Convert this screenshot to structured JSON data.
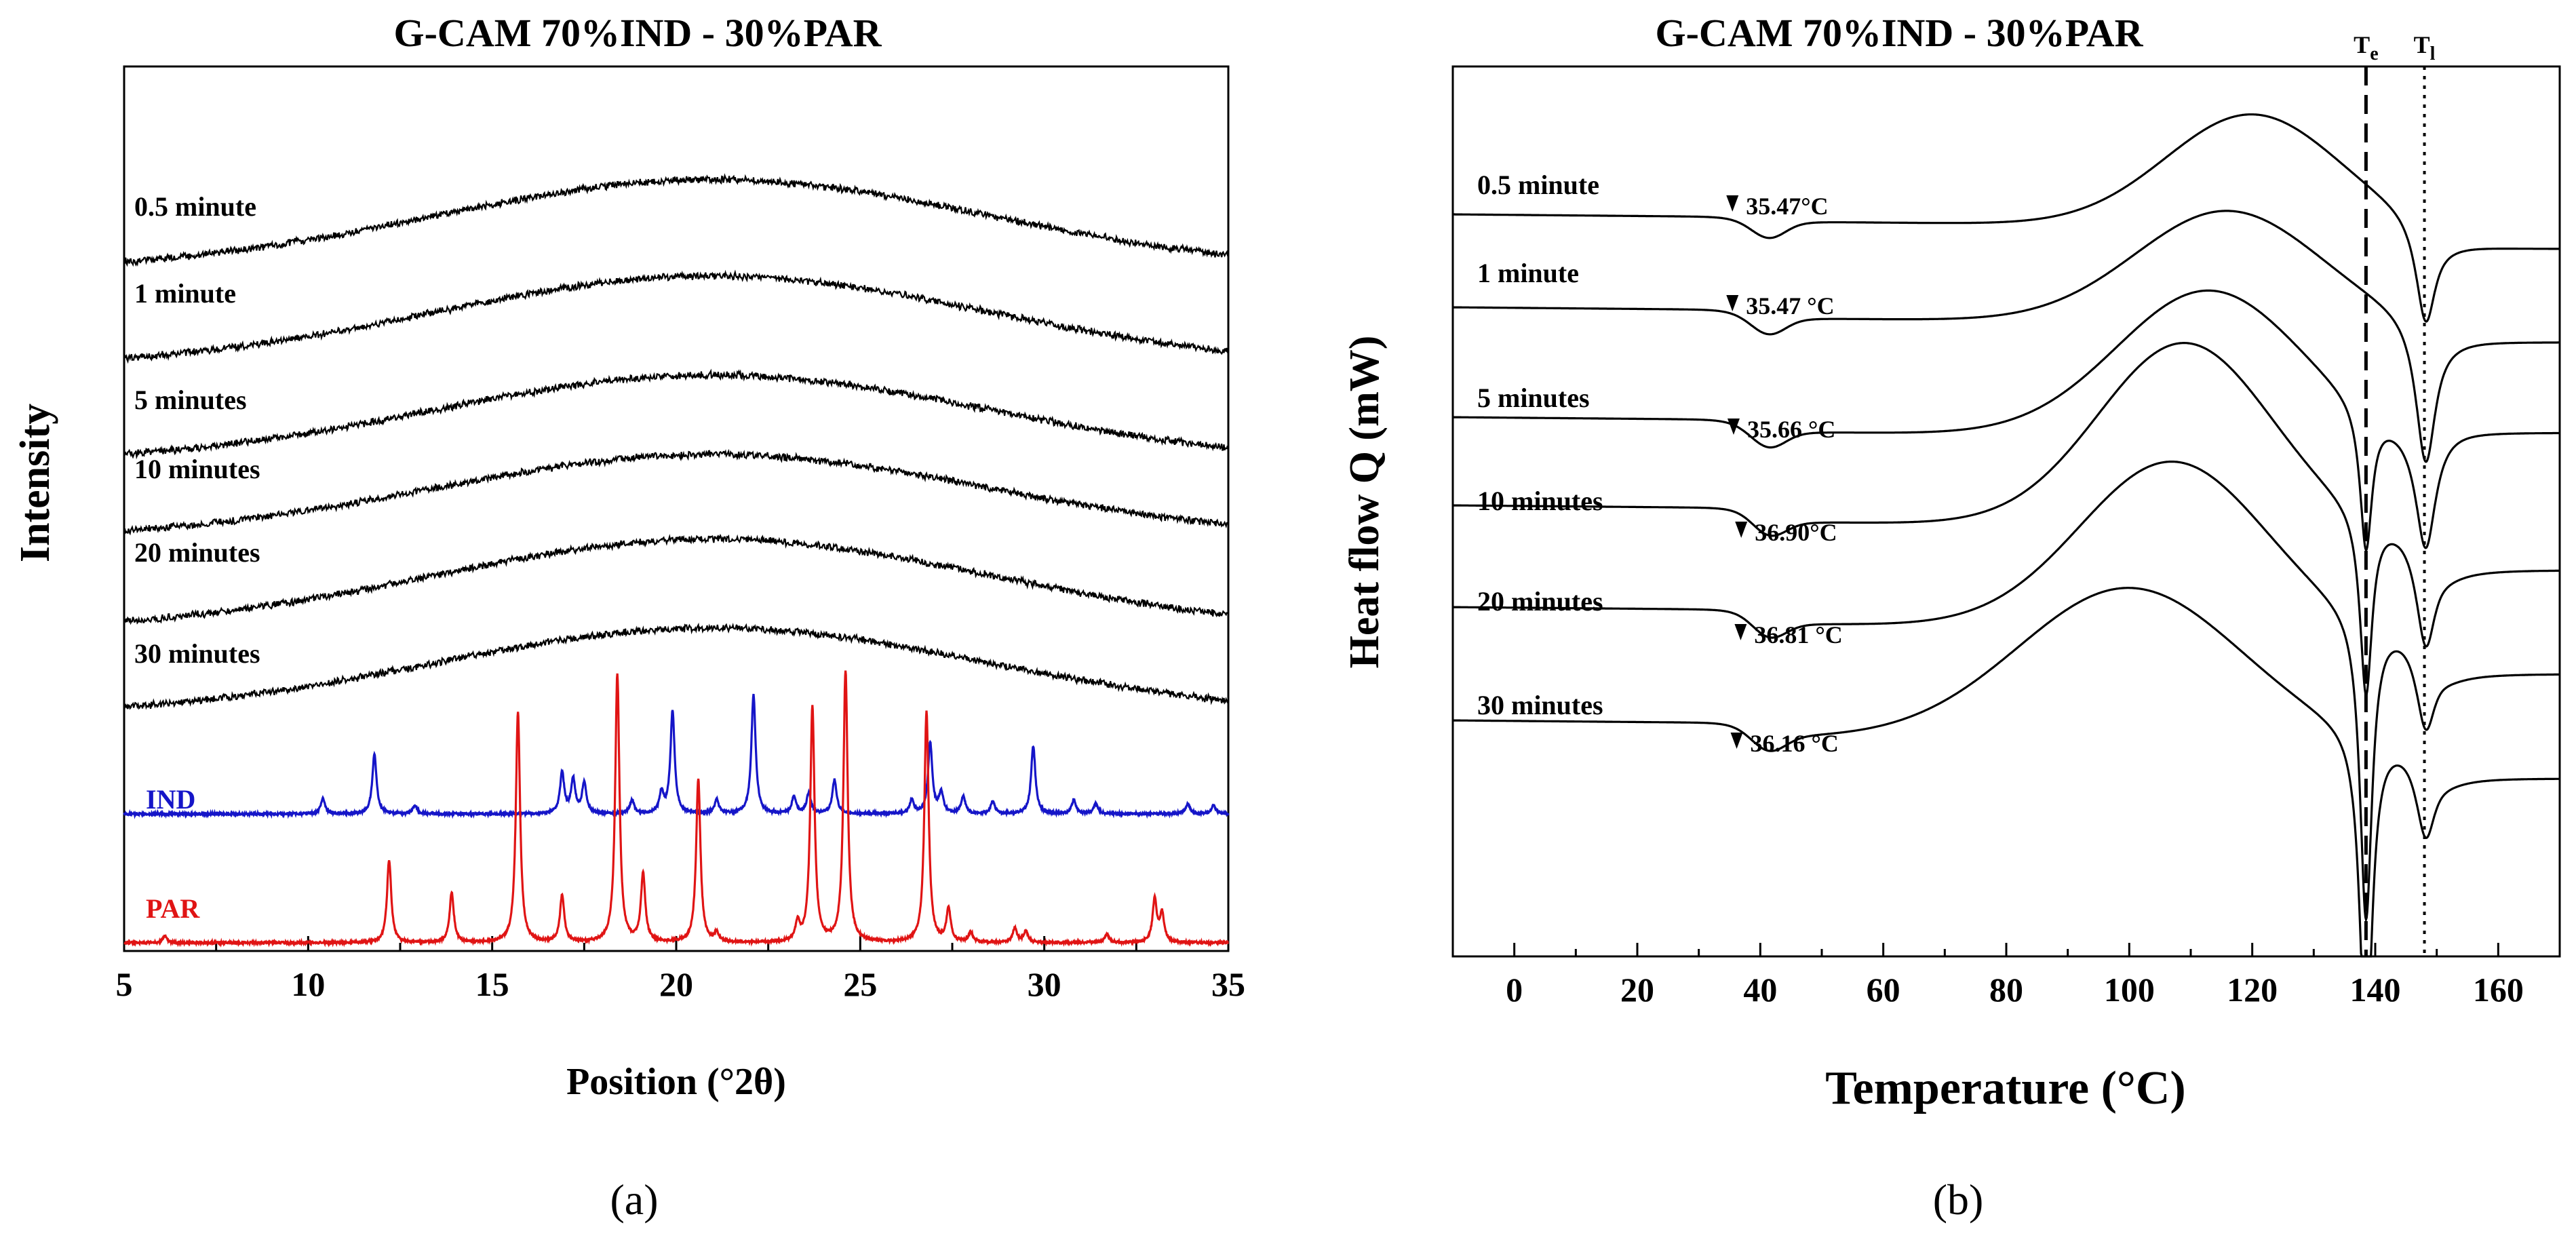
{
  "chart_data": [
    {
      "panel": "(a)",
      "type": "line",
      "title": "G-CAM 70%IND - 30%PAR",
      "xlabel": "Position (°2θ)",
      "ylabel": "Intensity",
      "xlim": [
        5,
        35
      ],
      "xticks": [
        5,
        10,
        15,
        20,
        25,
        30,
        35
      ],
      "series": [
        {
          "name": "0.5 minute",
          "color": "#000000",
          "pattern": "amorphous halo",
          "halo_center": 21
        },
        {
          "name": "1 minute",
          "color": "#000000",
          "pattern": "amorphous halo",
          "halo_center": 21
        },
        {
          "name": "5 minutes",
          "color": "#000000",
          "pattern": "amorphous halo",
          "halo_center": 21
        },
        {
          "name": "10 minutes",
          "color": "#000000",
          "pattern": "amorphous halo",
          "halo_center": 21
        },
        {
          "name": "20 minutes",
          "color": "#000000",
          "pattern": "amorphous halo",
          "halo_center": 21
        },
        {
          "name": "30 minutes",
          "color": "#000000",
          "pattern": "amorphous halo",
          "halo_center": 21
        },
        {
          "name": "IND",
          "color": "#1515c8",
          "peaks": [
            [
              10.4,
              0.09
            ],
            [
              11.8,
              0.35
            ],
            [
              12.9,
              0.05
            ],
            [
              16.9,
              0.24
            ],
            [
              17.2,
              0.2
            ],
            [
              17.5,
              0.18
            ],
            [
              18.8,
              0.08
            ],
            [
              19.6,
              0.12
            ],
            [
              19.9,
              0.6
            ],
            [
              21.1,
              0.08
            ],
            [
              22.1,
              0.7
            ],
            [
              23.2,
              0.1
            ],
            [
              23.6,
              0.12
            ],
            [
              24.3,
              0.2
            ],
            [
              26.4,
              0.08
            ],
            [
              26.9,
              0.42
            ],
            [
              27.2,
              0.12
            ],
            [
              27.8,
              0.1
            ],
            [
              28.6,
              0.07
            ],
            [
              29.7,
              0.4
            ],
            [
              30.8,
              0.08
            ],
            [
              31.4,
              0.06
            ],
            [
              33.9,
              0.06
            ],
            [
              34.6,
              0.05
            ]
          ]
        },
        {
          "name": "PAR",
          "color": "#e01414",
          "peaks": [
            [
              6.1,
              0.05
            ],
            [
              12.2,
              0.58
            ],
            [
              13.9,
              0.35
            ],
            [
              15.7,
              1.62
            ],
            [
              16.9,
              0.33
            ],
            [
              18.4,
              1.88
            ],
            [
              19.1,
              0.48
            ],
            [
              20.6,
              1.15
            ],
            [
              21.1,
              0.06
            ],
            [
              23.3,
              0.13
            ],
            [
              23.7,
              1.65
            ],
            [
              24.6,
              1.9
            ],
            [
              26.8,
              1.62
            ],
            [
              27.4,
              0.23
            ],
            [
              28.0,
              0.07
            ],
            [
              29.2,
              0.1
            ],
            [
              29.5,
              0.08
            ],
            [
              31.7,
              0.06
            ],
            [
              33.0,
              0.3
            ],
            [
              33.2,
              0.2
            ]
          ]
        }
      ]
    },
    {
      "panel": "(b)",
      "type": "line",
      "title": "G-CAM 70%IND - 30%PAR",
      "xlabel": "Temperature (°C)",
      "ylabel": "Heat flow Q (mW)",
      "xlim": [
        -10,
        170
      ],
      "xticks": [
        0,
        20,
        40,
        60,
        80,
        100,
        120,
        140,
        160
      ],
      "vlines": [
        {
          "label": "T",
          "sub": "e",
          "x": 138.5,
          "style": "dashed"
        },
        {
          "label": "T",
          "sub": "l",
          "x": 148,
          "style": "dotted"
        }
      ],
      "series": [
        {
          "name": "0.5 minute",
          "annotation": "35.47°C",
          "tg_onset": 35.47,
          "exo_peak_T": 120
        },
        {
          "name": "1 minute",
          "annotation": "35.47 °C",
          "tg_onset": 35.47,
          "exo_peak_T": 116
        },
        {
          "name": "5 minutes",
          "annotation": "35.66 °C",
          "tg_onset": 35.66,
          "exo_peak_T": 113
        },
        {
          "name": "10 minutes",
          "annotation": "36.90°C",
          "tg_onset": 36.9,
          "exo_peak_T": 109
        },
        {
          "name": "20 minutes",
          "annotation": "36.81 °C",
          "tg_onset": 36.81,
          "exo_peak_T": 107
        },
        {
          "name": "30 minutes",
          "annotation": "36.16 °C",
          "tg_onset": 36.16,
          "exo_peak_T": 100
        }
      ]
    }
  ]
}
